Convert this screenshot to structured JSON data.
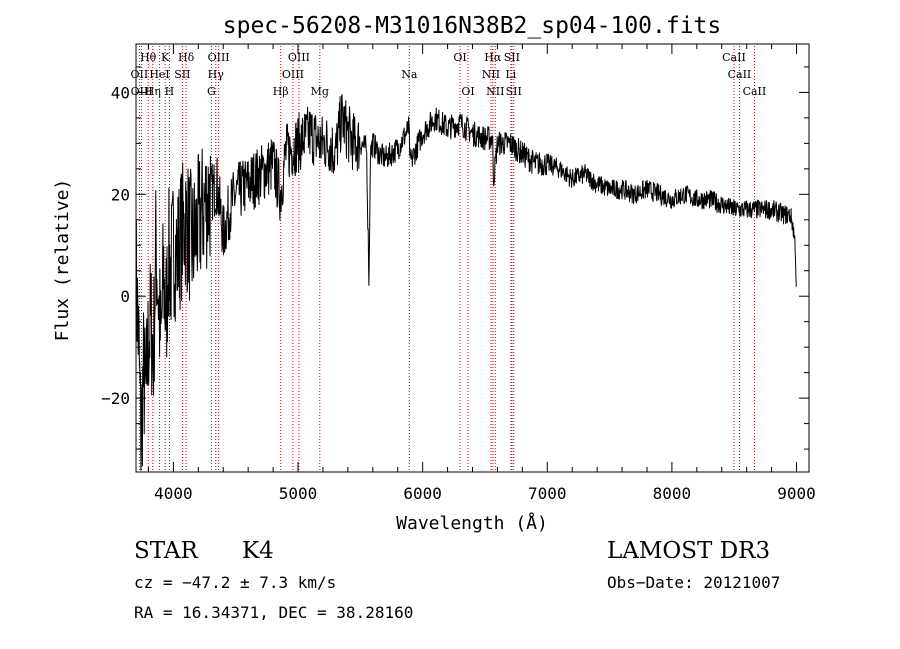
{
  "chart_data": {
    "type": "line",
    "title": "spec-56208-M31016N38B2_sp04-100.fits",
    "xlabel": "Wavelength (Å)",
    "ylabel": "Flux (relative)",
    "xlim": [
      3700,
      9100
    ],
    "ylim": [
      -34.5,
      49.5
    ],
    "xticks": [
      4000,
      5000,
      6000,
      7000,
      8000,
      9000
    ],
    "yticks": [
      -20,
      0,
      20,
      40
    ],
    "grid": false,
    "series": [
      {
        "name": "flux",
        "x": [
          3700,
          3720,
          3740,
          3760,
          3780,
          3800,
          3820,
          3840,
          3860,
          3880,
          3900,
          3920,
          3940,
          3960,
          3980,
          4000,
          4030,
          4060,
          4100,
          4150,
          4200,
          4250,
          4300,
          4350,
          4400,
          4450,
          4500,
          4600,
          4700,
          4800,
          4860,
          4900,
          5000,
          5100,
          5180,
          5250,
          5300,
          5350,
          5400,
          5450,
          5500,
          5550,
          5570,
          5580,
          5600,
          5650,
          5700,
          5800,
          5890,
          5900,
          6000,
          6100,
          6200,
          6300,
          6400,
          6500,
          6560,
          6570,
          6600,
          6700,
          6800,
          6900,
          7000,
          7100,
          7200,
          7300,
          7400,
          7500,
          7600,
          7700,
          7800,
          7900,
          8000,
          8100,
          8200,
          8300,
          8400,
          8500,
          8600,
          8700,
          8800,
          8900,
          8950,
          8970,
          8990,
          9000
        ],
        "y": [
          5,
          -8,
          -28,
          -15,
          -20,
          -8,
          -5,
          -12,
          10,
          0,
          -10,
          5,
          -5,
          8,
          5,
          10,
          8,
          12,
          15,
          10,
          14,
          18,
          20,
          22,
          12,
          17,
          20,
          22,
          24,
          26,
          20,
          28,
          30,
          32,
          30,
          30,
          28,
          35,
          32,
          30,
          30,
          29,
          2,
          28,
          30,
          28,
          27,
          29,
          33,
          26,
          32,
          35,
          33,
          34,
          32,
          31,
          31,
          23,
          30,
          30,
          28,
          26,
          26,
          25,
          23,
          24,
          22,
          21,
          21,
          20,
          21,
          20,
          19,
          20,
          19,
          19,
          18,
          17,
          17,
          17,
          17,
          16,
          16,
          14,
          10,
          0
        ]
      }
    ],
    "lines": [
      {
        "label": "Hθ",
        "x": 3798,
        "row": 1,
        "color": "#cc0000"
      },
      {
        "label": "OII",
        "x": 3727,
        "row": 2,
        "color": "#cc0000"
      },
      {
        "label": "OIII",
        "x": 3745,
        "row": 3,
        "color": "#cc0000"
      },
      {
        "label": "Hη",
        "x": 3835,
        "row": 3,
        "color": "#cc0000"
      },
      {
        "label": "HeI",
        "x": 3889,
        "row": 2,
        "color": "#cc0000"
      },
      {
        "label": "K",
        "x": 3934,
        "row": 1,
        "color": "#cc0000"
      },
      {
        "label": "H",
        "x": 3968,
        "row": 3,
        "color": "#cc0000"
      },
      {
        "label": "SII",
        "x": 4072,
        "row": 2,
        "color": "#cc0000"
      },
      {
        "label": "Hδ",
        "x": 4102,
        "row": 1,
        "color": "#cc0000"
      },
      {
        "label": "G",
        "x": 4305,
        "row": 3,
        "color": "#cc0000"
      },
      {
        "label": "OIII",
        "x": 4363,
        "row": 1,
        "color": "#cc0000"
      },
      {
        "label": "Hγ",
        "x": 4340,
        "row": 2,
        "color": "#cc0000"
      },
      {
        "label": "Hβ",
        "x": 4861,
        "row": 3,
        "color": "#cc0000"
      },
      {
        "label": "OIII",
        "x": 4959,
        "row": 2,
        "color": "#cc0000"
      },
      {
        "label": "OIII",
        "x": 5007,
        "row": 1,
        "color": "#cc0000"
      },
      {
        "label": "Mg",
        "x": 5175,
        "row": 3,
        "color": "#cc0000"
      },
      {
        "label": "Na",
        "x": 5893,
        "row": 2,
        "color": "#cc0000"
      },
      {
        "label": "OI",
        "x": 6300,
        "row": 1,
        "color": "#cc0000"
      },
      {
        "label": "OI",
        "x": 6364,
        "row": 3,
        "color": "#cc0000"
      },
      {
        "label": "Hα",
        "x": 6563,
        "row": 1,
        "color": "#cc0000"
      },
      {
        "label": "NII",
        "x": 6548,
        "row": 2,
        "color": "#cc0000"
      },
      {
        "label": "NII",
        "x": 6583,
        "row": 3,
        "color": "#cc0000"
      },
      {
        "label": "SII",
        "x": 6716,
        "row": 1,
        "color": "#cc0000"
      },
      {
        "label": "Li",
        "x": 6708,
        "row": 2,
        "color": "#cc0000"
      },
      {
        "label": "SII",
        "x": 6731,
        "row": 3,
        "color": "#cc0000"
      },
      {
        "label": "CaII",
        "x": 8498,
        "row": 1,
        "color": "#cc0000"
      },
      {
        "label": "CaII",
        "x": 8542,
        "row": 2,
        "color": "#cc0000"
      },
      {
        "label": "CaII",
        "x": 8662,
        "row": 3,
        "color": "#cc0000"
      }
    ]
  },
  "info": {
    "class": "STAR",
    "subclass": "K4",
    "survey": "LAMOST DR3",
    "cz": "cz = −47.2 ± 7.3 km/s",
    "obs_date": "Obs−Date: 20121007",
    "coords": "RA =  16.34371, DEC =  38.28160"
  }
}
